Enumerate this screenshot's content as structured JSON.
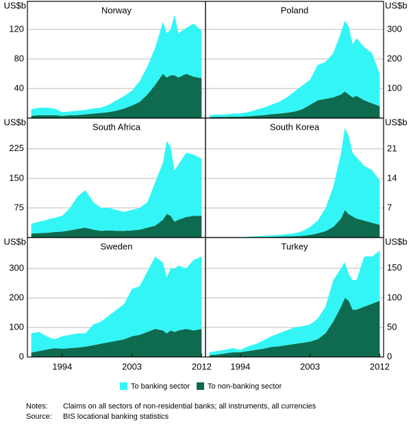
{
  "chart_data": {
    "type": "area",
    "x": [
      1990,
      1991,
      1992,
      1993,
      1994,
      1995,
      1996,
      1997,
      1998,
      1999,
      2000,
      2001,
      2002,
      2003,
      2004,
      2005,
      2006,
      2007,
      2007.5,
      2008,
      2008.5,
      2009,
      2010,
      2011,
      2012
    ],
    "xlim": [
      1989.5,
      2012.5
    ],
    "xticks": [
      1994,
      2003,
      2012
    ],
    "grid": true,
    "series": [
      {
        "name": "To banking sector",
        "color": "#33f5f5"
      },
      {
        "name": "To non-banking sector",
        "color": "#0e6b4f"
      }
    ],
    "panels": [
      {
        "title": "Norway",
        "unit": "US$b",
        "side": "left",
        "ylim": [
          0,
          158
        ],
        "yticks": [
          40,
          80,
          120
        ],
        "series": [
          {
            "values": [
              9,
              10,
              10,
              9,
              5,
              5,
              6,
              6,
              7,
              7,
              10,
              14,
              17,
              20,
              28,
              38,
              50,
              70,
              60,
              62,
              82,
              60,
              62,
              72,
              64
            ]
          },
          {
            "values": [
              3,
              4,
              4,
              4,
              3,
              4,
              4,
              5,
              6,
              7,
              8,
              10,
              13,
              17,
              22,
              32,
              45,
              60,
              55,
              58,
              58,
              55,
              60,
              56,
              54
            ]
          }
        ]
      },
      {
        "title": "Poland",
        "unit": "US$b",
        "side": "right",
        "ylim": [
          0,
          395
        ],
        "yticks": [
          100,
          200,
          300
        ],
        "series": [
          {
            "values": [
              7,
              8,
              8,
              10,
              11,
              14,
              20,
              25,
              32,
              40,
              52,
              68,
              80,
              85,
              120,
              125,
              150,
              210,
              240,
              230,
              180,
              195,
              180,
              170,
              110
            ]
          },
          {
            "values": [
              3,
              4,
              4,
              5,
              5,
              6,
              8,
              10,
              13,
              15,
              18,
              22,
              30,
              45,
              60,
              65,
              70,
              80,
              90,
              80,
              70,
              75,
              60,
              50,
              40
            ]
          }
        ]
      },
      {
        "title": "South Africa",
        "unit": "US$b",
        "side": "left",
        "ylim": [
          0,
          303
        ],
        "yticks": [
          75,
          150,
          225
        ],
        "series": [
          {
            "values": [
              25,
              29,
              33,
              36,
              40,
              57,
              83,
              95,
              70,
              58,
              57,
              53,
              48,
              52,
              55,
              65,
              110,
              145,
              185,
              175,
              130,
              140,
              163,
              155,
              145
            ]
          },
          {
            "values": [
              10,
              11,
              12,
              14,
              15,
              18,
              22,
              25,
              20,
              17,
              18,
              17,
              17,
              18,
              20,
              25,
              30,
              45,
              60,
              55,
              40,
              45,
              52,
              55,
              55
            ]
          }
        ]
      },
      {
        "title": "South Korea",
        "unit": "US$b",
        "side": "right",
        "ylim": [
          0,
          28.3
        ],
        "yticks": [
          7,
          14,
          21
        ],
        "series": [
          {
            "values": [
              0,
              0,
              0,
              0,
              0,
              0.15,
              0.2,
              0.3,
              0.35,
              0.4,
              0.55,
              0.7,
              1.1,
              1.9,
              3,
              5.5,
              9.5,
              15.5,
              19.5,
              18.5,
              15,
              14.5,
              13,
              12.5,
              10.5
            ]
          },
          {
            "values": [
              0,
              0,
              0,
              0,
              0,
              0.05,
              0.1,
              0.1,
              0.15,
              0.2,
              0.25,
              0.3,
              0.4,
              0.6,
              1,
              1.5,
              2.5,
              4.5,
              6.5,
              5.5,
              5,
              4.5,
              4,
              3.5,
              3
            ]
          }
        ]
      },
      {
        "title": "Sweden",
        "unit": "US$b",
        "side": "left",
        "ylim": [
          0,
          405
        ],
        "yticks": [
          0,
          100,
          200,
          300
        ],
        "series": [
          {
            "values": [
              65,
              65,
              45,
              30,
              42,
              45,
              48,
              45,
              70,
              75,
              90,
              105,
              120,
              160,
              165,
              205,
              245,
              230,
              190,
              210,
              215,
              220,
              205,
              240,
              245
            ]
          },
          {
            "values": [
              15,
              20,
              25,
              30,
              28,
              30,
              32,
              35,
              40,
              45,
              50,
              55,
              60,
              70,
              75,
              85,
              95,
              90,
              80,
              90,
              85,
              90,
              95,
              90,
              95
            ]
          }
        ]
      },
      {
        "title": "Turkey",
        "unit": "US$b",
        "side": "right",
        "ylim": [
          0,
          202
        ],
        "yticks": [
          0,
          50,
          100,
          150
        ],
        "series": [
          {
            "values": [
              5,
              6,
              6,
              7,
              4,
              8,
              10,
              14,
              18,
              22,
              25,
              28,
              28,
              29,
              35,
              45,
              70,
              65,
              60,
              45,
              50,
              50,
              85,
              80,
              85
            ]
          },
          {
            "values": [
              3,
              4,
              6,
              8,
              8,
              10,
              12,
              14,
              17,
              18,
              20,
              22,
              24,
              26,
              30,
              40,
              60,
              85,
              100,
              95,
              80,
              80,
              85,
              90,
              95
            ]
          }
        ]
      }
    ]
  },
  "notes": {
    "notes_label": "Notes:",
    "notes_text": "Claims on all sectors of non-residential banks; all instruments, all currencies",
    "source_label": "Source:",
    "source_text": "BIS locational banking statistics"
  }
}
